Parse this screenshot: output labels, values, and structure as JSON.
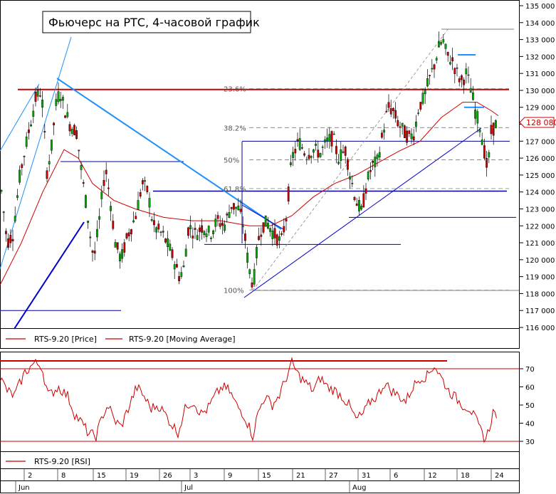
{
  "chart_data": [
    {
      "type": "line",
      "title": "Фьючерс на РТС, 4-часовой график",
      "series": [
        {
          "name": "RTS-9.20 [Price]",
          "color": "#cc0000",
          "style": "candlestick"
        },
        {
          "name": "RTS-9.20 [Moving Average]",
          "color": "#cc0000"
        }
      ],
      "y_axis": {
        "ylim": [
          116000,
          135000
        ],
        "ticks": [
          "135 000",
          "134 000",
          "133 000",
          "132 000",
          "131 000",
          "130 000",
          "129 000",
          "128 000",
          "127 000",
          "126 000",
          "125 000",
          "124 000",
          "123 000",
          "122 000",
          "121 000",
          "120 000",
          "119 000",
          "118 000",
          "117 000",
          "116 000"
        ]
      },
      "x_ticks": [
        {
          "label": "2",
          "month": "Jun"
        },
        {
          "label": "8"
        },
        {
          "label": "15"
        },
        {
          "label": "19"
        },
        {
          "label": "26"
        },
        {
          "label": "3",
          "month": "Jul"
        },
        {
          "label": "9"
        },
        {
          "label": "15"
        },
        {
          "label": "21"
        },
        {
          "label": "27"
        },
        {
          "label": "31",
          "month": "Aug"
        },
        {
          "label": "6"
        },
        {
          "label": "12"
        },
        {
          "label": "18"
        },
        {
          "label": "24"
        }
      ],
      "last_price": {
        "label": "128 080",
        "value": 128080
      },
      "fibonacci": [
        {
          "label": "23.6%",
          "value": 130100
        },
        {
          "label": "38.2%",
          "value": 127800
        },
        {
          "label": "50%",
          "value": 125900
        },
        {
          "label": "61.8%",
          "value": 124200
        },
        {
          "label": "100%",
          "value": 118200
        }
      ],
      "horizontal_levels": [
        130050,
        124050,
        129000,
        132100,
        127000,
        122500,
        120900,
        117000
      ],
      "price_path": [
        [
          0,
          124800
        ],
        [
          10,
          121000
        ],
        [
          18,
          121500
        ],
        [
          28,
          125000
        ],
        [
          40,
          127500
        ],
        [
          50,
          129500
        ],
        [
          58,
          130000
        ],
        [
          62,
          128000
        ],
        [
          65,
          125000
        ],
        [
          72,
          126500
        ],
        [
          78,
          129000
        ],
        [
          84,
          130000
        ],
        [
          90,
          129000
        ],
        [
          98,
          128000
        ],
        [
          108,
          127500
        ],
        [
          115,
          125000
        ],
        [
          122,
          123000
        ],
        [
          128,
          121000
        ],
        [
          132,
          120000
        ],
        [
          140,
          122500
        ],
        [
          148,
          125500
        ],
        [
          155,
          123500
        ],
        [
          162,
          121000
        ],
        [
          170,
          120000
        ],
        [
          180,
          121500
        ],
        [
          190,
          122500
        ],
        [
          200,
          124500
        ],
        [
          208,
          124000
        ],
        [
          215,
          122000
        ],
        [
          228,
          121500
        ],
        [
          240,
          120500
        ],
        [
          252,
          119000
        ],
        [
          258,
          119500
        ],
        [
          265,
          122000
        ],
        [
          275,
          121500
        ],
        [
          285,
          122000
        ],
        [
          295,
          121500
        ],
        [
          305,
          122300
        ],
        [
          315,
          122000
        ],
        [
          325,
          123200
        ],
        [
          335,
          123000
        ],
        [
          342,
          122000
        ],
        [
          348,
          120000
        ],
        [
          352,
          119000
        ],
        [
          356,
          118500
        ],
        [
          362,
          121000
        ],
        [
          368,
          122000
        ],
        [
          375,
          122200
        ],
        [
          385,
          121500
        ],
        [
          395,
          121000
        ],
        [
          402,
          122500
        ],
        [
          410,
          126000
        ],
        [
          420,
          127000
        ],
        [
          430,
          126200
        ],
        [
          440,
          126500
        ],
        [
          450,
          126300
        ],
        [
          460,
          127000
        ],
        [
          468,
          127200
        ],
        [
          475,
          126000
        ],
        [
          485,
          126500
        ],
        [
          492,
          125000
        ],
        [
          500,
          123500
        ],
        [
          508,
          122800
        ],
        [
          515,
          124500
        ],
        [
          522,
          125500
        ],
        [
          530,
          125800
        ],
        [
          538,
          127500
        ],
        [
          545,
          129000
        ],
        [
          552,
          128800
        ],
        [
          560,
          128000
        ],
        [
          568,
          127500
        ],
        [
          575,
          127200
        ],
        [
          582,
          127500
        ],
        [
          588,
          129000
        ],
        [
          595,
          129500
        ],
        [
          602,
          130500
        ],
        [
          610,
          131500
        ],
        [
          616,
          132500
        ],
        [
          622,
          133000
        ],
        [
          628,
          132000
        ],
        [
          635,
          131800
        ],
        [
          642,
          131000
        ],
        [
          648,
          130500
        ],
        [
          655,
          131000
        ],
        [
          662,
          130000
        ],
        [
          668,
          128700
        ],
        [
          675,
          127800
        ],
        [
          680,
          126500
        ],
        [
          685,
          125200
        ],
        [
          690,
          127500
        ],
        [
          696,
          128000
        ]
      ],
      "ma_path": [
        [
          0,
          118500
        ],
        [
          30,
          121000
        ],
        [
          60,
          124000
        ],
        [
          90,
          126500
        ],
        [
          110,
          126000
        ],
        [
          130,
          124500
        ],
        [
          160,
          123500
        ],
        [
          190,
          123000
        ],
        [
          230,
          122500
        ],
        [
          270,
          122300
        ],
        [
          310,
          122300
        ],
        [
          350,
          122000
        ],
        [
          380,
          122000
        ],
        [
          410,
          122600
        ],
        [
          440,
          123700
        ],
        [
          470,
          124500
        ],
        [
          500,
          125000
        ],
        [
          530,
          125700
        ],
        [
          560,
          126400
        ],
        [
          590,
          127000
        ],
        [
          620,
          128400
        ],
        [
          650,
          129300
        ],
        [
          670,
          129300
        ],
        [
          690,
          128800
        ],
        [
          700,
          128500
        ]
      ]
    },
    {
      "type": "line",
      "series": [
        {
          "name": "RTS-9.20 [RSI]",
          "color": "#cc0000"
        }
      ],
      "y_axis": {
        "ylim": [
          24,
          78
        ],
        "ticks": [
          "70",
          "60",
          "50",
          "40",
          "30"
        ]
      },
      "levels": [
        70,
        30,
        74
      ],
      "rsi_path": [
        [
          0,
          65
        ],
        [
          10,
          58
        ],
        [
          20,
          55
        ],
        [
          35,
          68
        ],
        [
          48,
          73
        ],
        [
          58,
          72
        ],
        [
          68,
          55
        ],
        [
          82,
          60
        ],
        [
          95,
          55
        ],
        [
          105,
          45
        ],
        [
          115,
          40
        ],
        [
          125,
          34
        ],
        [
          135,
          33
        ],
        [
          145,
          45
        ],
        [
          152,
          50
        ],
        [
          160,
          42
        ],
        [
          170,
          38
        ],
        [
          180,
          48
        ],
        [
          192,
          60
        ],
        [
          202,
          55
        ],
        [
          212,
          48
        ],
        [
          222,
          50
        ],
        [
          232,
          45
        ],
        [
          240,
          40
        ],
        [
          250,
          35
        ],
        [
          262,
          50
        ],
        [
          272,
          52
        ],
        [
          282,
          45
        ],
        [
          292,
          48
        ],
        [
          302,
          55
        ],
        [
          312,
          60
        ],
        [
          322,
          58
        ],
        [
          332,
          50
        ],
        [
          342,
          45
        ],
        [
          350,
          38
        ],
        [
          355,
          33
        ],
        [
          362,
          45
        ],
        [
          372,
          55
        ],
        [
          382,
          50
        ],
        [
          392,
          55
        ],
        [
          402,
          65
        ],
        [
          410,
          73
        ],
        [
          420,
          66
        ],
        [
          430,
          62
        ],
        [
          440,
          58
        ],
        [
          450,
          65
        ],
        [
          460,
          60
        ],
        [
          470,
          58
        ],
        [
          480,
          55
        ],
        [
          490,
          50
        ],
        [
          500,
          42
        ],
        [
          510,
          45
        ],
        [
          520,
          52
        ],
        [
          530,
          55
        ],
        [
          540,
          62
        ],
        [
          550,
          58
        ],
        [
          560,
          55
        ],
        [
          570,
          52
        ],
        [
          580,
          60
        ],
        [
          590,
          65
        ],
        [
          600,
          66
        ],
        [
          610,
          72
        ],
        [
          620,
          65
        ],
        [
          630,
          58
        ],
        [
          640,
          54
        ],
        [
          650,
          50
        ],
        [
          660,
          48
        ],
        [
          668,
          42
        ],
        [
          675,
          36
        ],
        [
          682,
          31
        ],
        [
          688,
          38
        ],
        [
          692,
          46
        ],
        [
          698,
          45
        ]
      ]
    }
  ]
}
